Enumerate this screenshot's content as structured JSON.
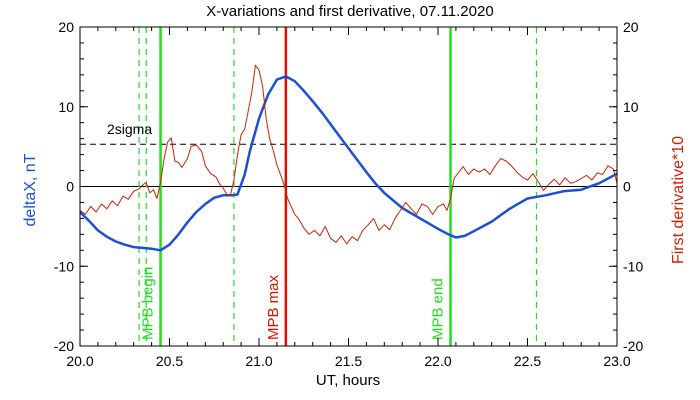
{
  "chart_data": {
    "type": "line",
    "title": "X-variations and first derivative, 07.11.2020",
    "xlabel": "UT, hours",
    "ylabel_left": "deltaX, nT",
    "ylabel_right": "First derivative*10",
    "xlim": [
      20.0,
      23.0
    ],
    "ylim": [
      -20,
      20
    ],
    "x_ticks": [
      20.0,
      20.5,
      21.0,
      21.5,
      22.0,
      22.5,
      23.0
    ],
    "x_tick_labels": [
      "20.0",
      "20.5",
      "21.0",
      "21.5",
      "22.0",
      "22.5",
      "23.0"
    ],
    "y_ticks": [
      -20,
      -10,
      0,
      10,
      20
    ],
    "y_tick_labels": [
      "-20",
      "-10",
      "0",
      "10",
      "20"
    ],
    "colors": {
      "deltaX": "#1a4fd6",
      "derivative": "#cc2200",
      "mpb": "#22dd22",
      "max": "#dd1100",
      "axis": "#000000"
    },
    "threshold": {
      "label": "2sigma",
      "value": 5.3
    },
    "zero_line": 0,
    "series": [
      {
        "key": "deltaX",
        "x": [
          20.0,
          20.05,
          20.1,
          20.15,
          20.2,
          20.25,
          20.3,
          20.35,
          20.4,
          20.45,
          20.5,
          20.55,
          20.6,
          20.65,
          20.7,
          20.75,
          20.8,
          20.85,
          20.88,
          20.92,
          20.95,
          21.0,
          21.05,
          21.1,
          21.15,
          21.2,
          21.25,
          21.3,
          21.35,
          21.4,
          21.45,
          21.5,
          21.55,
          21.6,
          21.65,
          21.7,
          21.8,
          21.9,
          22.0,
          22.05,
          22.1,
          22.15,
          22.2,
          22.3,
          22.4,
          22.5,
          22.6,
          22.7,
          22.8,
          22.9,
          23.0
        ],
        "y": [
          -3.2,
          -4.3,
          -5.5,
          -6.3,
          -6.9,
          -7.3,
          -7.6,
          -7.7,
          -7.8,
          -8.0,
          -7.3,
          -6.0,
          -4.5,
          -3.2,
          -2.2,
          -1.4,
          -1.1,
          -1.1,
          -1.0,
          1.5,
          4.5,
          8.5,
          11.5,
          13.4,
          13.8,
          13.2,
          12.0,
          10.7,
          9.3,
          7.8,
          6.3,
          4.8,
          3.3,
          1.8,
          0.4,
          -0.8,
          -2.7,
          -4.0,
          -5.3,
          -5.9,
          -6.4,
          -6.2,
          -5.6,
          -4.4,
          -2.8,
          -1.5,
          -1.1,
          -0.6,
          -0.4,
          0.4,
          1.6
        ]
      },
      {
        "key": "derivative",
        "x": [
          20.0,
          20.03,
          20.06,
          20.09,
          20.12,
          20.15,
          20.18,
          20.21,
          20.24,
          20.27,
          20.3,
          20.33,
          20.35,
          20.37,
          20.39,
          20.41,
          20.43,
          20.45,
          20.47,
          20.49,
          20.51,
          20.53,
          20.55,
          20.57,
          20.6,
          20.62,
          20.65,
          20.68,
          20.7,
          20.73,
          20.76,
          20.78,
          20.8,
          20.82,
          20.84,
          20.86,
          20.88,
          20.9,
          20.92,
          20.94,
          20.96,
          20.98,
          21.0,
          21.02,
          21.04,
          21.06,
          21.08,
          21.1,
          21.12,
          21.14,
          21.16,
          21.18,
          21.2,
          21.22,
          21.25,
          21.28,
          21.31,
          21.34,
          21.37,
          21.4,
          21.43,
          21.46,
          21.49,
          21.52,
          21.55,
          21.58,
          21.61,
          21.64,
          21.67,
          21.7,
          21.73,
          21.76,
          21.79,
          21.82,
          21.85,
          21.88,
          21.91,
          21.94,
          21.97,
          22.0,
          22.03,
          22.05,
          22.07,
          22.09,
          22.11,
          22.14,
          22.17,
          22.2,
          22.23,
          22.26,
          22.29,
          22.32,
          22.35,
          22.38,
          22.41,
          22.44,
          22.47,
          22.5,
          22.53,
          22.56,
          22.59,
          22.62,
          22.65,
          22.68,
          22.71,
          22.74,
          22.77,
          22.8,
          22.83,
          22.86,
          22.89,
          22.92,
          22.95,
          22.98,
          23.0
        ],
        "y": [
          -3.0,
          -3.5,
          -2.5,
          -3.2,
          -2.2,
          -2.8,
          -1.8,
          -2.4,
          -1.2,
          -1.6,
          -0.6,
          -0.3,
          0.2,
          0.5,
          -0.8,
          -0.4,
          -1.5,
          0.5,
          3.5,
          5.6,
          6.1,
          3.2,
          3.0,
          2.4,
          3.5,
          5.0,
          5.2,
          4.4,
          2.6,
          1.6,
          1.2,
          0.3,
          -0.2,
          -1.0,
          -1.1,
          0.8,
          4.0,
          6.5,
          7.2,
          9.5,
          11.8,
          15.2,
          14.6,
          12.6,
          8.5,
          6.0,
          4.5,
          2.7,
          1.5,
          0.2,
          -1.5,
          -2.5,
          -3.5,
          -4.0,
          -5.2,
          -6.0,
          -5.5,
          -6.2,
          -5.0,
          -6.5,
          -7.0,
          -6.2,
          -7.2,
          -6.3,
          -6.8,
          -5.5,
          -4.8,
          -4.0,
          -5.5,
          -4.8,
          -5.4,
          -4.0,
          -3.0,
          -2.0,
          -2.8,
          -3.5,
          -2.2,
          -2.5,
          -3.5,
          -2.5,
          -2.2,
          -3.0,
          -1.5,
          1.0,
          1.6,
          2.5,
          1.5,
          2.2,
          1.8,
          2.2,
          1.5,
          2.6,
          3.5,
          3.2,
          2.6,
          1.8,
          1.2,
          0.8,
          1.6,
          0.6,
          -0.5,
          0.3,
          0.9,
          0.2,
          1.1,
          0.4,
          0.6,
          1.0,
          1.4,
          0.8,
          1.7,
          1.5,
          2.6,
          2.2,
          0.4
        ]
      }
    ],
    "vlines": [
      {
        "x": 20.33,
        "style": "dashed",
        "color": "#22dd22"
      },
      {
        "x": 20.37,
        "style": "dashed",
        "color": "#22dd22"
      },
      {
        "x": 20.45,
        "style": "solid",
        "color": "#22dd22",
        "label": "MPB begin"
      },
      {
        "x": 20.86,
        "style": "dashed",
        "color": "#22dd22"
      },
      {
        "x": 21.15,
        "style": "solid",
        "color": "#dd1100",
        "label": "MPB max"
      },
      {
        "x": 22.07,
        "style": "solid",
        "color": "#22dd22",
        "label": "MPB end"
      },
      {
        "x": 22.55,
        "style": "dashed",
        "color": "#22dd22"
      }
    ]
  }
}
